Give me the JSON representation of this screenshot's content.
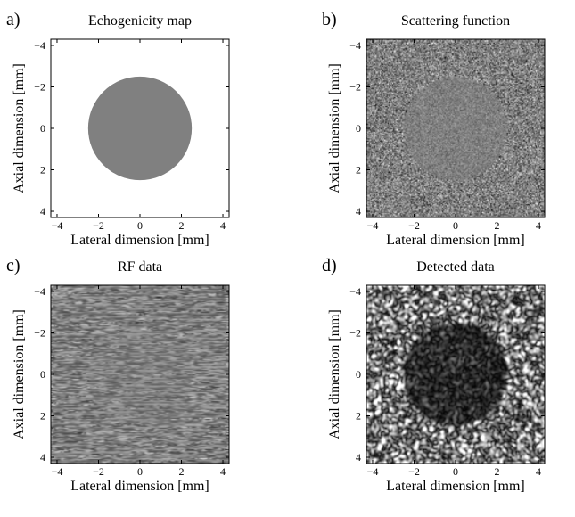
{
  "figure": {
    "panels": [
      {
        "letter": "a)",
        "title": "Echogenicity map",
        "xlabel": "Lateral dimension [mm]",
        "ylabel": "Axial dimension [mm]",
        "image_kind": "echogenicity",
        "x_ticks": [
          "−4",
          "−2",
          "0",
          "2",
          "4"
        ],
        "y_ticks": [
          "−4",
          "−2",
          "0",
          "2",
          "4"
        ]
      },
      {
        "letter": "b)",
        "title": "Scattering function",
        "xlabel": "Lateral dimension [mm]",
        "ylabel": "Axial dimension [mm]",
        "image_kind": "scattering",
        "x_ticks": [
          "−4",
          "−2",
          "0",
          "2",
          "4"
        ],
        "y_ticks": [
          "−4",
          "−2",
          "0",
          "2",
          "4"
        ]
      },
      {
        "letter": "c)",
        "title": "RF data",
        "xlabel": "Lateral dimension [mm]",
        "ylabel": "Axial dimension [mm]",
        "image_kind": "rf",
        "x_ticks": [
          "−4",
          "−2",
          "0",
          "2",
          "4"
        ],
        "y_ticks": [
          "−4",
          "−2",
          "0",
          "2",
          "4"
        ]
      },
      {
        "letter": "d)",
        "title": "Detected data",
        "xlabel": "Lateral dimension [mm]",
        "ylabel": "Axial dimension [mm]",
        "image_kind": "detected",
        "x_ticks": [
          "−4",
          "−2",
          "0",
          "2",
          "4"
        ],
        "y_ticks": [
          "−4",
          "−2",
          "0",
          "2",
          "4"
        ]
      }
    ],
    "extent_mm": [
      -4.3,
      4.3
    ],
    "tick_values_mm": [
      -4,
      -2,
      0,
      2,
      4
    ],
    "inclusion": {
      "center_mm": [
        0,
        0
      ],
      "radius_mm": 2.5
    },
    "colors": {
      "inclusion": "#808080",
      "background": "#ffffff",
      "axes": "#000000"
    }
  }
}
